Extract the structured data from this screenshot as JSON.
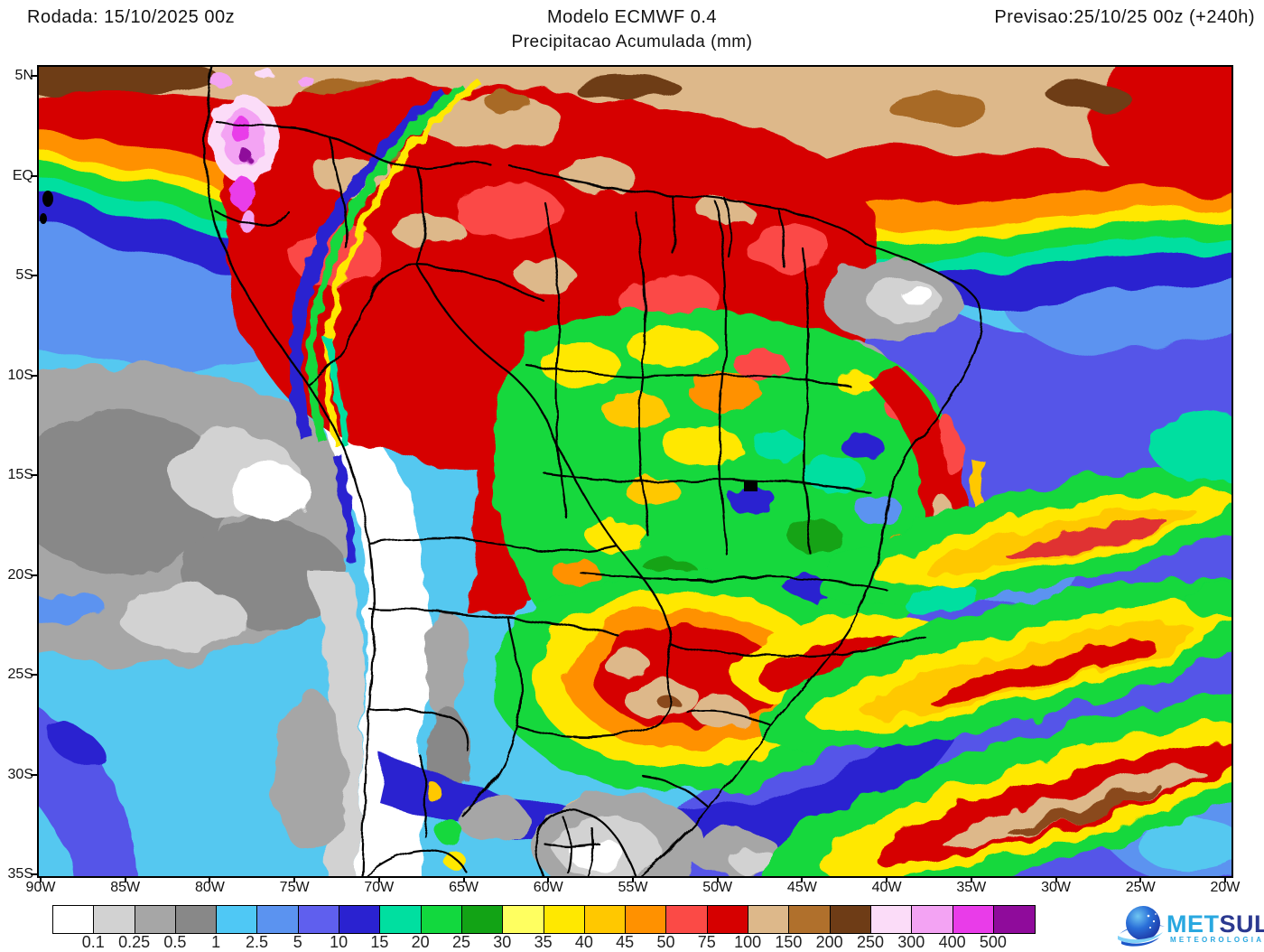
{
  "header": {
    "run_label": "Rodada: 15/10/2025 00z",
    "model_label": "Modelo ECMWF 0.4",
    "forecast_label": "Previsao:25/10/25 00z (+240h)",
    "subtitle": "Precipitacao Acumulada (mm)"
  },
  "axes": {
    "lat_labels": [
      "5N",
      "EQ",
      "5S",
      "10S",
      "15S",
      "20S",
      "25S",
      "30S",
      "35S"
    ],
    "lon_labels": [
      "90W",
      "85W",
      "80W",
      "75W",
      "70W",
      "65W",
      "60W",
      "55W",
      "50W",
      "45W",
      "40W",
      "35W",
      "30W",
      "25W",
      "20W"
    ]
  },
  "colorbar": {
    "labels": [
      "0.1",
      "0.25",
      "0.5",
      "1",
      "2.5",
      "5",
      "10",
      "15",
      "20",
      "25",
      "30",
      "35",
      "40",
      "45",
      "50",
      "75",
      "100",
      "150",
      "200",
      "250",
      "300",
      "400",
      "500"
    ],
    "colors": [
      "#FFFFFF",
      "#D2D2D2",
      "#A6A6A6",
      "#888888",
      "#4FC8F5",
      "#5B93F0",
      "#5F5FEE",
      "#2A22D0",
      "#00DFA0",
      "#12D83E",
      "#12A315",
      "#FFFF60",
      "#FFE800",
      "#FFC800",
      "#FF9100",
      "#FB4A46",
      "#D60000",
      "#DDB88A",
      "#B0702C",
      "#6E3C16",
      "#FBDCF8",
      "#F3A3F3",
      "#E93CE9",
      "#8F0B9B"
    ]
  },
  "logo": {
    "met": "MET",
    "sul": "SUL",
    "tagline": "METEOROLOGIA"
  }
}
